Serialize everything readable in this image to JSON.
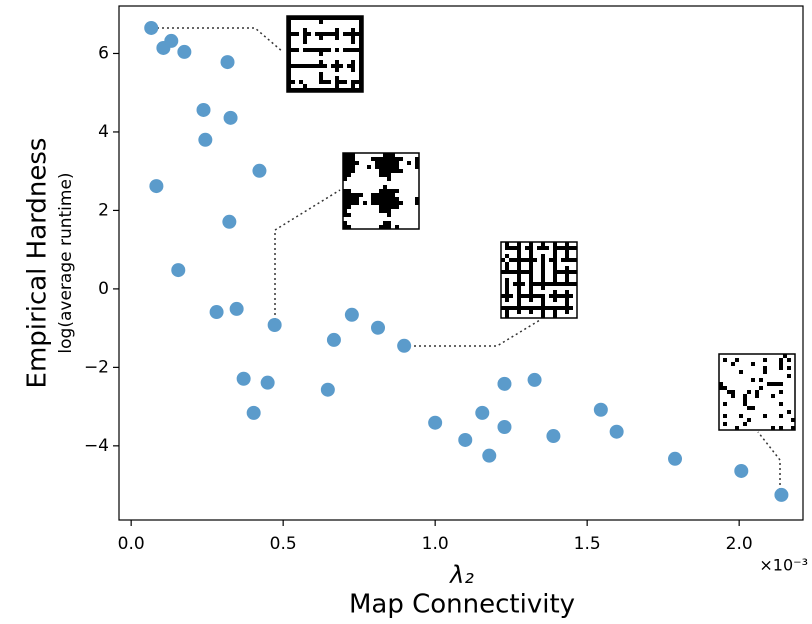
{
  "chart_data": {
    "type": "scatter",
    "ylabel": "Empirical Hardness",
    "ylabel_sub": "log(average runtime)",
    "xlabel_symbol": "λ₂",
    "xlabel": "Map Connectivity",
    "x_offset_label": "×10⁻³",
    "color": "#5b9bcb",
    "x": [
      0.066,
      0.106,
      0.132,
      0.175,
      0.317,
      0.238,
      0.327,
      0.244,
      0.422,
      0.083,
      0.323,
      0.155,
      0.281,
      0.347,
      0.472,
      0.667,
      0.726,
      0.812,
      0.898,
      0.37,
      0.449,
      0.403,
      0.647,
      1.0,
      1.099,
      1.155,
      1.178,
      1.228,
      1.228,
      1.327,
      1.389,
      1.545,
      1.597,
      1.789,
      2.007,
      2.139
    ],
    "values": [
      6.65,
      6.14,
      6.32,
      6.04,
      5.78,
      4.56,
      4.36,
      3.8,
      3.01,
      2.62,
      1.71,
      0.48,
      -0.59,
      -0.51,
      -0.92,
      -1.3,
      -0.66,
      -0.99,
      -1.45,
      -2.29,
      -2.39,
      -3.16,
      -2.57,
      -3.41,
      -3.85,
      -3.16,
      -4.25,
      -2.42,
      -3.52,
      -2.32,
      -3.75,
      -3.08,
      -3.64,
      -4.33,
      -4.64,
      -5.25
    ],
    "xlim": [
      -0.04,
      2.21
    ],
    "ylim": [
      -5.89,
      7.21
    ],
    "xticks": [
      {
        "value": 0,
        "label": "0.0"
      },
      {
        "value": 0.5,
        "label": "0.5"
      },
      {
        "value": 1,
        "label": "1.0"
      },
      {
        "value": 1.5,
        "label": "1.5"
      },
      {
        "value": 2,
        "label": "2.0"
      }
    ],
    "yticks": [
      {
        "value": -4,
        "label": "−4"
      },
      {
        "value": -2,
        "label": "−2"
      },
      0,
      2,
      4,
      6
    ],
    "grid": false
  }
}
